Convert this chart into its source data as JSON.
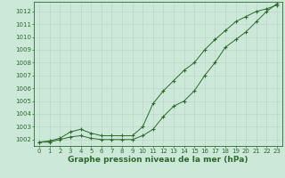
{
  "x": [
    0,
    1,
    2,
    3,
    4,
    5,
    6,
    7,
    8,
    9,
    10,
    11,
    12,
    13,
    14,
    15,
    16,
    17,
    18,
    19,
    20,
    21,
    22,
    23
  ],
  "series1_straight": [
    1001.8,
    1001.9,
    1002.1,
    1002.6,
    1002.8,
    1002.5,
    1002.3,
    1002.3,
    1002.3,
    1002.3,
    1003.0,
    1004.8,
    1005.8,
    1006.6,
    1007.4,
    1008.0,
    1009.0,
    1009.8,
    1010.5,
    1011.2,
    1011.6,
    1012.0,
    1012.2,
    1012.5
  ],
  "series2_curved": [
    1001.8,
    1001.8,
    1002.0,
    1002.2,
    1002.3,
    1002.1,
    1002.0,
    1002.0,
    1002.0,
    1002.0,
    1002.3,
    1002.8,
    1003.8,
    1004.6,
    1005.0,
    1005.8,
    1007.0,
    1008.0,
    1009.2,
    1009.8,
    1010.4,
    1011.2,
    1012.0,
    1012.6
  ],
  "line_color": "#2d6a2d",
  "bg_color": "#cce8d8",
  "grid_major_color": "#b8d4c0",
  "grid_minor_color": "#d0e8d8",
  "xlabel": "Graphe pression niveau de la mer (hPa)",
  "ylim": [
    1001.5,
    1012.75
  ],
  "xlim": [
    -0.5,
    23.5
  ],
  "yticks": [
    1002,
    1003,
    1004,
    1005,
    1006,
    1007,
    1008,
    1009,
    1010,
    1011,
    1012
  ],
  "xticks": [
    0,
    1,
    2,
    3,
    4,
    5,
    6,
    7,
    8,
    9,
    10,
    11,
    12,
    13,
    14,
    15,
    16,
    17,
    18,
    19,
    20,
    21,
    22,
    23
  ],
  "tick_fontsize": 5,
  "xlabel_fontsize": 6.5,
  "marker": "+"
}
